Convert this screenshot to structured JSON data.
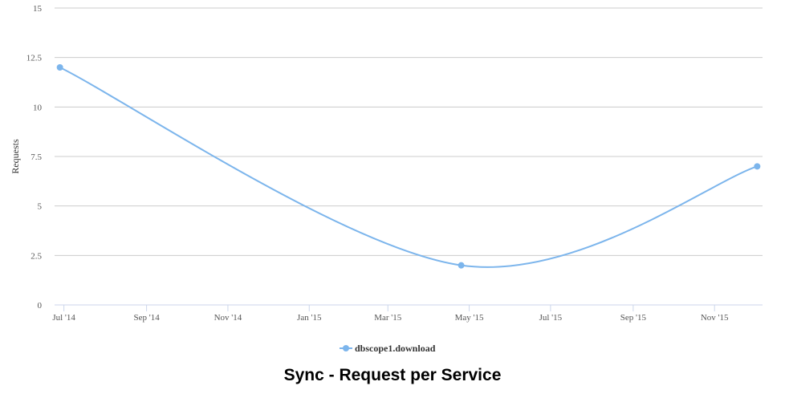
{
  "chart_data": {
    "type": "line",
    "title": "Sync - Request per Service",
    "xlabel": "",
    "ylabel": "Requests",
    "ylim": [
      0,
      15
    ],
    "yticks": [
      "0",
      "2.5",
      "5",
      "7.5",
      "10",
      "12.5",
      "15"
    ],
    "xlim": [
      "2014-06-24",
      "2015-12-07"
    ],
    "xticks": [
      {
        "date": "2014-07-01",
        "label": "Jul '14"
      },
      {
        "date": "2014-09-01",
        "label": "Sep '14"
      },
      {
        "date": "2014-11-01",
        "label": "Nov '14"
      },
      {
        "date": "2015-01-01",
        "label": "Jan '15"
      },
      {
        "date": "2015-03-01",
        "label": "Mar '15"
      },
      {
        "date": "2015-05-01",
        "label": "May '15"
      },
      {
        "date": "2015-07-01",
        "label": "Jul '15"
      },
      {
        "date": "2015-09-01",
        "label": "Sep '15"
      },
      {
        "date": "2015-11-01",
        "label": "Nov '15"
      }
    ],
    "grid": true,
    "legend_position": "bottom-center",
    "series": [
      {
        "name": "dbscope1.download",
        "color": "#7cb5ec",
        "x": [
          "2014-06-28",
          "2015-04-25",
          "2015-12-03"
        ],
        "y": [
          12,
          2,
          7
        ]
      }
    ]
  }
}
